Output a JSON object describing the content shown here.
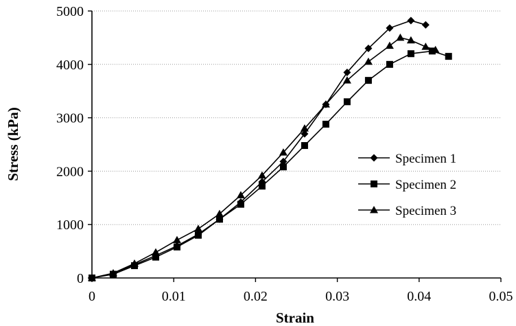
{
  "chart_data": {
    "type": "line",
    "xlabel": "Strain",
    "ylabel": "Stress (kPa)",
    "xlim": [
      0,
      0.05
    ],
    "ylim": [
      0,
      5000
    ],
    "xticks": [
      "0",
      "0.01",
      "0.02",
      "0.03",
      "0.04",
      "0.05"
    ],
    "yticks": [
      "0",
      "1000",
      "2000",
      "3000",
      "4000",
      "5000"
    ],
    "grid": "horizontal dotted",
    "legend_position": "right",
    "series": [
      {
        "name": "Specimen 1",
        "marker": "diamond",
        "points": [
          [
            0,
            0
          ],
          [
            0.0026,
            80
          ],
          [
            0.0052,
            250
          ],
          [
            0.0078,
            420
          ],
          [
            0.0104,
            600
          ],
          [
            0.013,
            820
          ],
          [
            0.0156,
            1100
          ],
          [
            0.0182,
            1420
          ],
          [
            0.0208,
            1800
          ],
          [
            0.0234,
            2180
          ],
          [
            0.026,
            2700
          ],
          [
            0.0286,
            3250
          ],
          [
            0.0312,
            3850
          ],
          [
            0.0338,
            4300
          ],
          [
            0.0364,
            4680
          ],
          [
            0.039,
            4820
          ],
          [
            0.0408,
            4740
          ]
        ]
      },
      {
        "name": "Specimen 2",
        "marker": "square",
        "points": [
          [
            0,
            0
          ],
          [
            0.0026,
            70
          ],
          [
            0.0052,
            230
          ],
          [
            0.0078,
            390
          ],
          [
            0.0104,
            580
          ],
          [
            0.013,
            800
          ],
          [
            0.0156,
            1100
          ],
          [
            0.0182,
            1380
          ],
          [
            0.0208,
            1720
          ],
          [
            0.0234,
            2080
          ],
          [
            0.026,
            2480
          ],
          [
            0.0286,
            2880
          ],
          [
            0.0312,
            3300
          ],
          [
            0.0338,
            3700
          ],
          [
            0.0364,
            4000
          ],
          [
            0.039,
            4200
          ],
          [
            0.0416,
            4250
          ],
          [
            0.0436,
            4150
          ]
        ]
      },
      {
        "name": "Specimen 3",
        "marker": "triangle",
        "points": [
          [
            0,
            0
          ],
          [
            0.0026,
            90
          ],
          [
            0.0052,
            270
          ],
          [
            0.0078,
            480
          ],
          [
            0.0104,
            710
          ],
          [
            0.013,
            920
          ],
          [
            0.0156,
            1200
          ],
          [
            0.0182,
            1550
          ],
          [
            0.0208,
            1920
          ],
          [
            0.0234,
            2350
          ],
          [
            0.026,
            2800
          ],
          [
            0.0286,
            3250
          ],
          [
            0.0312,
            3700
          ],
          [
            0.0338,
            4050
          ],
          [
            0.0364,
            4350
          ],
          [
            0.0377,
            4500
          ],
          [
            0.039,
            4450
          ],
          [
            0.0408,
            4330
          ],
          [
            0.042,
            4270
          ]
        ]
      }
    ]
  }
}
